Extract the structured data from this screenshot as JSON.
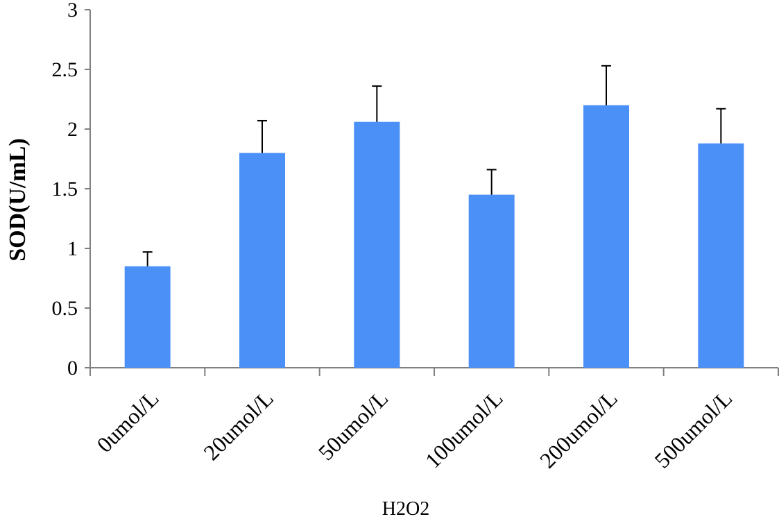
{
  "chart_data": {
    "type": "bar",
    "title": "",
    "xlabel": "H2O2",
    "ylabel": "SOD(U/mL)",
    "ylim": [
      0,
      3
    ],
    "yticks": [
      "0",
      "0.5",
      "1",
      "1.5",
      "2",
      "2.5",
      "3"
    ],
    "categories": [
      "0umol/L",
      "20umol/L",
      "50umol/L",
      "100umol/L",
      "200umol/L",
      "500umol/L"
    ],
    "series": [
      {
        "values": [
          0.85,
          1.8,
          2.06,
          1.45,
          2.2,
          1.88
        ],
        "error": [
          0.12,
          0.27,
          0.3,
          0.21,
          0.33,
          0.29
        ]
      }
    ],
    "grid": false,
    "legend": "none",
    "colors": {
      "bar": "#4a90f7",
      "axis": "#808080",
      "errorbar": "#000000"
    }
  }
}
